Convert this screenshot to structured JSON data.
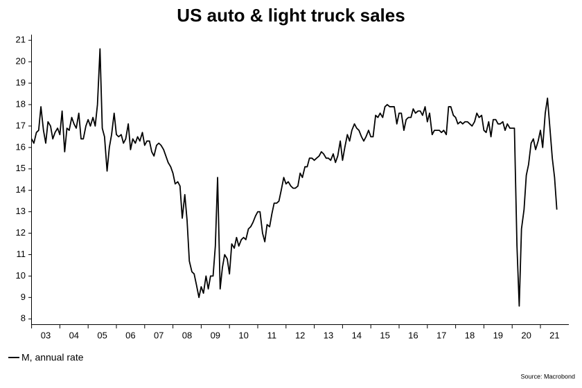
{
  "chart_data": {
    "type": "line",
    "title": "US auto & light truck sales",
    "source": "Source: Macrobond",
    "x": [
      2003.0,
      2003.08,
      2003.17,
      2003.25,
      2003.33,
      2003.42,
      2003.5,
      2003.58,
      2003.67,
      2003.75,
      2003.83,
      2003.92,
      2004.0,
      2004.08,
      2004.17,
      2004.25,
      2004.33,
      2004.42,
      2004.5,
      2004.58,
      2004.67,
      2004.75,
      2004.83,
      2004.92,
      2005.0,
      2005.08,
      2005.17,
      2005.25,
      2005.33,
      2005.42,
      2005.5,
      2005.58,
      2005.67,
      2005.75,
      2005.83,
      2005.92,
      2006.0,
      2006.08,
      2006.17,
      2006.25,
      2006.33,
      2006.42,
      2006.5,
      2006.58,
      2006.67,
      2006.75,
      2006.83,
      2006.92,
      2007.0,
      2007.08,
      2007.17,
      2007.25,
      2007.33,
      2007.42,
      2007.5,
      2007.58,
      2007.67,
      2007.75,
      2007.83,
      2007.92,
      2008.0,
      2008.08,
      2008.17,
      2008.25,
      2008.33,
      2008.42,
      2008.5,
      2008.58,
      2008.67,
      2008.75,
      2008.83,
      2008.92,
      2009.0,
      2009.08,
      2009.17,
      2009.25,
      2009.33,
      2009.42,
      2009.5,
      2009.58,
      2009.67,
      2009.75,
      2009.83,
      2009.92,
      2010.0,
      2010.08,
      2010.17,
      2010.25,
      2010.33,
      2010.42,
      2010.5,
      2010.58,
      2010.67,
      2010.75,
      2010.83,
      2010.92,
      2011.0,
      2011.08,
      2011.17,
      2011.25,
      2011.33,
      2011.42,
      2011.5,
      2011.58,
      2011.67,
      2011.75,
      2011.83,
      2011.92,
      2012.0,
      2012.08,
      2012.17,
      2012.25,
      2012.33,
      2012.42,
      2012.5,
      2012.58,
      2012.67,
      2012.75,
      2012.83,
      2012.92,
      2013.0,
      2013.08,
      2013.17,
      2013.25,
      2013.33,
      2013.42,
      2013.5,
      2013.58,
      2013.67,
      2013.75,
      2013.83,
      2013.92,
      2014.0,
      2014.08,
      2014.17,
      2014.25,
      2014.33,
      2014.42,
      2014.5,
      2014.58,
      2014.67,
      2014.75,
      2014.83,
      2014.92,
      2015.0,
      2015.08,
      2015.17,
      2015.25,
      2015.33,
      2015.42,
      2015.5,
      2015.58,
      2015.67,
      2015.75,
      2015.83,
      2015.92,
      2016.0,
      2016.08,
      2016.17,
      2016.25,
      2016.33,
      2016.42,
      2016.5,
      2016.58,
      2016.67,
      2016.75,
      2016.83,
      2016.92,
      2017.0,
      2017.08,
      2017.17,
      2017.25,
      2017.33,
      2017.42,
      2017.5,
      2017.58,
      2017.67,
      2017.75,
      2017.83,
      2017.92,
      2018.0,
      2018.08,
      2018.17,
      2018.25,
      2018.33,
      2018.42,
      2018.5,
      2018.58,
      2018.67,
      2018.75,
      2018.83,
      2018.92,
      2019.0,
      2019.08,
      2019.17,
      2019.25,
      2019.33,
      2019.42,
      2019.5,
      2019.58,
      2019.67,
      2019.75,
      2019.83,
      2019.92,
      2020.0,
      2020.08,
      2020.17,
      2020.25,
      2020.33,
      2020.42,
      2020.5,
      2020.58,
      2020.67,
      2020.75,
      2020.83,
      2020.92,
      2021.0,
      2021.08,
      2021.17,
      2021.25,
      2021.33,
      2021.42,
      2021.5,
      2021.58
    ],
    "series": [
      {
        "name": "M, annual rate",
        "color": "#000000",
        "values": [
          16.4,
          16.2,
          16.7,
          16.8,
          17.9,
          16.8,
          16.2,
          17.2,
          17.0,
          16.4,
          16.7,
          16.9,
          16.6,
          17.7,
          15.8,
          16.9,
          16.8,
          17.4,
          17.1,
          16.9,
          17.6,
          16.4,
          16.4,
          17.0,
          17.3,
          17.0,
          17.4,
          17.0,
          18.0,
          20.6,
          16.9,
          16.5,
          14.9,
          16.0,
          16.6,
          17.6,
          16.6,
          16.5,
          16.6,
          16.2,
          16.4,
          17.1,
          15.9,
          16.4,
          16.2,
          16.5,
          16.3,
          16.7,
          16.1,
          16.3,
          16.3,
          15.8,
          15.6,
          16.1,
          16.2,
          16.1,
          15.9,
          15.6,
          15.3,
          15.1,
          14.8,
          14.3,
          14.4,
          14.2,
          12.7,
          13.8,
          12.6,
          10.7,
          10.2,
          10.1,
          9.6,
          9.0,
          9.5,
          9.2,
          10.0,
          9.4,
          10.0,
          10.0,
          11.4,
          14.6,
          9.4,
          10.4,
          11.0,
          10.8,
          10.1,
          11.5,
          11.3,
          11.8,
          11.4,
          11.7,
          11.8,
          11.7,
          12.2,
          12.3,
          12.5,
          12.8,
          13.0,
          13.0,
          12.0,
          11.6,
          12.4,
          12.3,
          12.9,
          13.4,
          13.4,
          13.5,
          14.0,
          14.6,
          14.3,
          14.4,
          14.2,
          14.1,
          14.1,
          14.2,
          14.8,
          14.6,
          15.1,
          15.1,
          15.5,
          15.5,
          15.4,
          15.5,
          15.6,
          15.8,
          15.7,
          15.5,
          15.5,
          15.4,
          15.7,
          15.3,
          15.6,
          16.3,
          15.4,
          16.0,
          16.6,
          16.3,
          16.8,
          17.1,
          16.9,
          16.8,
          16.5,
          16.3,
          16.5,
          16.8,
          16.5,
          16.5,
          17.5,
          17.4,
          17.6,
          17.4,
          17.9,
          18.0,
          17.9,
          17.9,
          17.9,
          17.1,
          17.6,
          17.6,
          16.8,
          17.3,
          17.4,
          17.4,
          17.8,
          17.6,
          17.7,
          17.7,
          17.5,
          17.9,
          17.2,
          17.6,
          16.6,
          16.8,
          16.8,
          16.8,
          16.7,
          16.8,
          16.6,
          17.9,
          17.9,
          17.5,
          17.4,
          17.1,
          17.2,
          17.1,
          17.2,
          17.2,
          17.1,
          17.0,
          17.2,
          17.6,
          17.4,
          17.5,
          16.8,
          16.7,
          17.2,
          16.5,
          17.3,
          17.3,
          17.1,
          17.1,
          17.2,
          16.8,
          17.1,
          16.9,
          16.9,
          16.9,
          11.4,
          8.6,
          12.2,
          13.1,
          14.7,
          15.2,
          16.2,
          16.4,
          15.9,
          16.3,
          16.8,
          16.0,
          17.6,
          18.3,
          17.0,
          15.5,
          14.6,
          13.1
        ]
      }
    ],
    "xlim": [
      2003,
      2022
    ],
    "xticks": [
      {
        "value": 2003.5,
        "label": "03"
      },
      {
        "value": 2004.5,
        "label": "04"
      },
      {
        "value": 2005.5,
        "label": "05"
      },
      {
        "value": 2006.5,
        "label": "06"
      },
      {
        "value": 2007.5,
        "label": "07"
      },
      {
        "value": 2008.5,
        "label": "08"
      },
      {
        "value": 2009.5,
        "label": "09"
      },
      {
        "value": 2010.5,
        "label": "10"
      },
      {
        "value": 2011.5,
        "label": "11"
      },
      {
        "value": 2012.5,
        "label": "12"
      },
      {
        "value": 2013.5,
        "label": "13"
      },
      {
        "value": 2014.5,
        "label": "14"
      },
      {
        "value": 2015.5,
        "label": "15"
      },
      {
        "value": 2016.5,
        "label": "16"
      },
      {
        "value": 2017.5,
        "label": "17"
      },
      {
        "value": 2018.5,
        "label": "18"
      },
      {
        "value": 2019.5,
        "label": "19"
      },
      {
        "value": 2020.5,
        "label": "20"
      },
      {
        "value": 2021.5,
        "label": "21"
      }
    ],
    "ylim": [
      7.75,
      21.2
    ],
    "yticks": [
      8,
      9,
      10,
      11,
      12,
      13,
      14,
      15,
      16,
      17,
      18,
      19,
      20,
      21
    ],
    "grid": false
  }
}
